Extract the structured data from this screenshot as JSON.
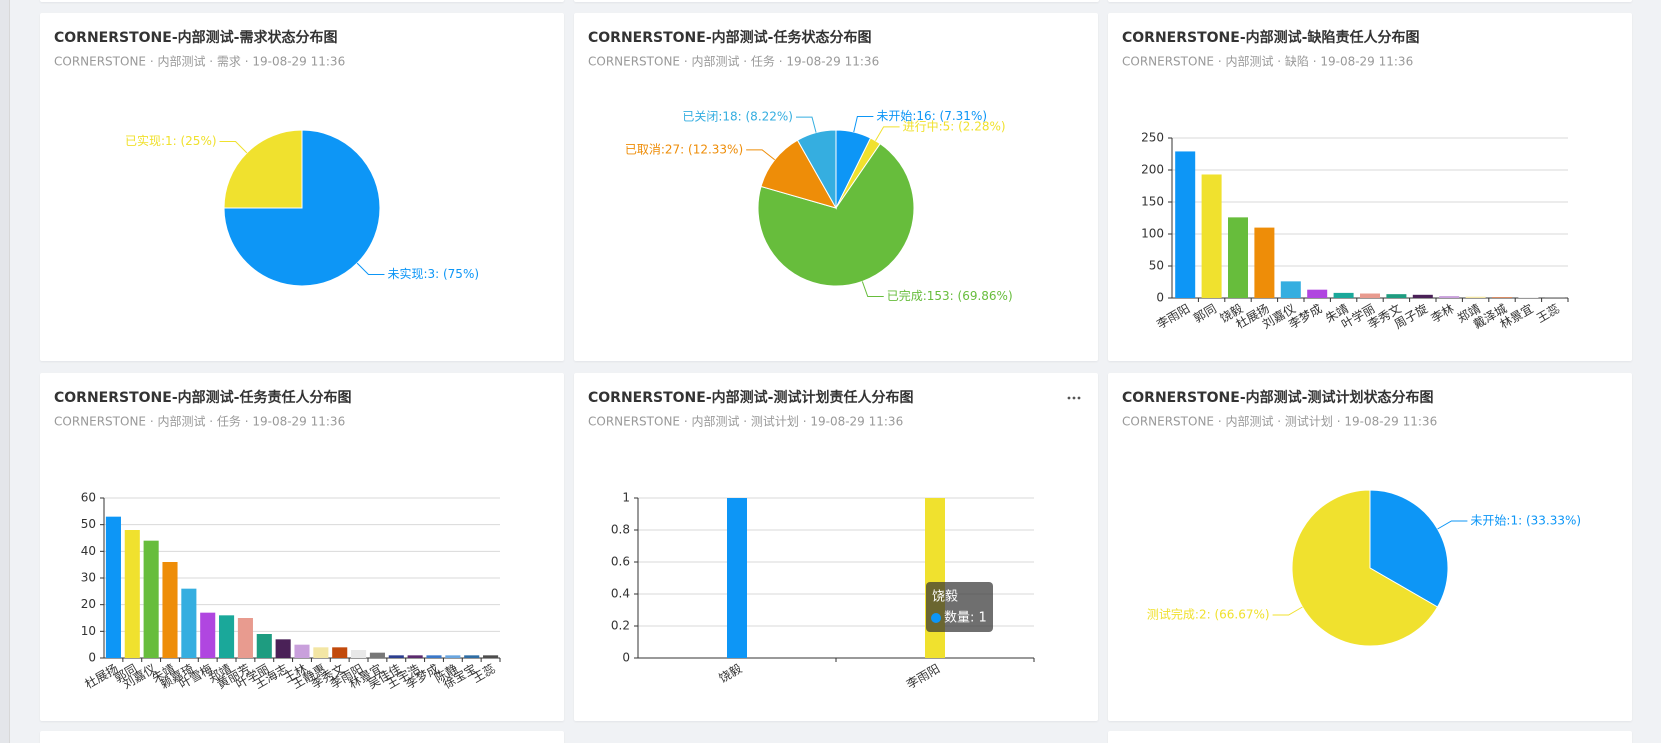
{
  "chart_data": [
    {
      "type": "pie",
      "title": "CORNERSTONE-内部测试-需求状态分布图",
      "subtitle": "CORNERSTONE · 内部测试 · 需求 · 19-08-29 11:36",
      "categories": [
        "未实现",
        "已实现"
      ],
      "values": [
        3,
        1
      ],
      "value_labels": [
        "未实现:3: (75%)",
        "已实现:1: (25%)"
      ],
      "colors": [
        "#0d96f6",
        "#f0e12e"
      ]
    },
    {
      "type": "pie",
      "title": "CORNERSTONE-内部测试-任务状态分布图",
      "subtitle": "CORNERSTONE · 内部测试 · 任务 · 19-08-29 11:36",
      "categories": [
        "未开始",
        "进行中",
        "已完成",
        "已取消",
        "已关闭"
      ],
      "values": [
        16,
        5,
        153,
        27,
        18
      ],
      "value_labels": [
        "未开始:16: (7.31%)",
        "进行中:5: (2.28%)",
        "已完成:153: (69.86%)",
        "已取消:27: (12.33%)",
        "已关闭:18: (8.22%)"
      ],
      "colors": [
        "#0d96f6",
        "#f0e12e",
        "#67bd3c",
        "#ee8d08",
        "#35aee0"
      ]
    },
    {
      "type": "bar",
      "title": "CORNERSTONE-内部测试-缺陷责任人分布图",
      "subtitle": "CORNERSTONE · 内部测试 · 缺陷 · 19-08-29 11:36",
      "categories": [
        "李雨阳",
        "郭同",
        "饶毅",
        "杜展扬",
        "刘嘉仪",
        "李梦成",
        "朱靖",
        "叶学丽",
        "李秀文",
        "周子旋",
        "李林",
        "郑靖",
        "戴泽城",
        "林景宜",
        "王蕊"
      ],
      "values": [
        229,
        193,
        126,
        110,
        26,
        13,
        8,
        7,
        6,
        5,
        3,
        2,
        1,
        1,
        1
      ],
      "colors": [
        "#0d96f6",
        "#f0e12e",
        "#67bd3c",
        "#ee8d08",
        "#35aee0",
        "#b046e0",
        "#1aa89a",
        "#e89b8f",
        "#1e9c80",
        "#4a2157",
        "#c9a0dc",
        "#f3e6a4",
        "#c24a0c",
        "#e8e8e8",
        "#777777"
      ],
      "ylim": [
        0,
        250
      ],
      "yticks": [
        0,
        50,
        100,
        150,
        200,
        250
      ],
      "grid": true
    },
    {
      "type": "bar",
      "title": "CORNERSTONE-内部测试-任务责任人分布图",
      "subtitle": "CORNERSTONE · 内部测试 · 任务 · 19-08-29 11:36",
      "categories": [
        "杜展扬",
        "郭同",
        "刘嘉仪",
        "朱靖",
        "赖嘉琦",
        "叶雪梅",
        "郑靖",
        "黄丽芳",
        "叶学丽",
        "王海志",
        "王林",
        "王静惠",
        "李秀文",
        "李雨阳",
        "林景宜",
        "吴佳佳",
        "王宇浩",
        "李梦成",
        "陈静",
        "徐宝宝",
        "王蕊"
      ],
      "values": [
        53,
        48,
        44,
        36,
        26,
        17,
        16,
        15,
        9,
        7,
        5,
        4,
        4,
        3,
        2,
        1,
        1,
        1,
        1,
        1,
        1
      ],
      "colors": [
        "#0d96f6",
        "#f0e12e",
        "#67bd3c",
        "#ee8d08",
        "#35aee0",
        "#b046e0",
        "#1aa89a",
        "#e89b8f",
        "#1e9c80",
        "#4a2157",
        "#c9a0dc",
        "#f3e6a4",
        "#c24a0c",
        "#e8e8e8",
        "#777777",
        "#2c3e8f",
        "#5b2a6e",
        "#3a78c9",
        "#6aa6e0",
        "#2e6da4",
        "#4d4d4d"
      ],
      "ylim": [
        0,
        60
      ],
      "yticks": [
        0,
        10,
        20,
        30,
        40,
        50,
        60
      ],
      "grid": true
    },
    {
      "type": "bar",
      "title": "CORNERSTONE-内部测试-测试计划责任人分布图",
      "subtitle": "CORNERSTONE · 内部测试 · 测试计划 · 19-08-29 11:36",
      "categories": [
        "饶毅",
        "李雨阳"
      ],
      "values": [
        1,
        1
      ],
      "colors": [
        "#0d96f6",
        "#f0e12e"
      ],
      "ylim": [
        0,
        1
      ],
      "yticks": [
        0,
        0.2,
        0.4,
        0.6,
        0.8,
        1
      ],
      "grid": true,
      "tooltip": {
        "title": "饶毅",
        "text": "数量: 1"
      }
    },
    {
      "type": "pie",
      "title": "CORNERSTONE-内部测试-测试计划状态分布图",
      "subtitle": "CORNERSTONE · 内部测试 · 测试计划 · 19-08-29 11:36",
      "categories": [
        "未开始",
        "测试完成"
      ],
      "values": [
        1,
        2
      ],
      "value_labels": [
        "未开始:1: (33.33%)",
        "测试完成:2: (66.67%)"
      ],
      "colors": [
        "#0d96f6",
        "#f0e12e"
      ]
    }
  ]
}
